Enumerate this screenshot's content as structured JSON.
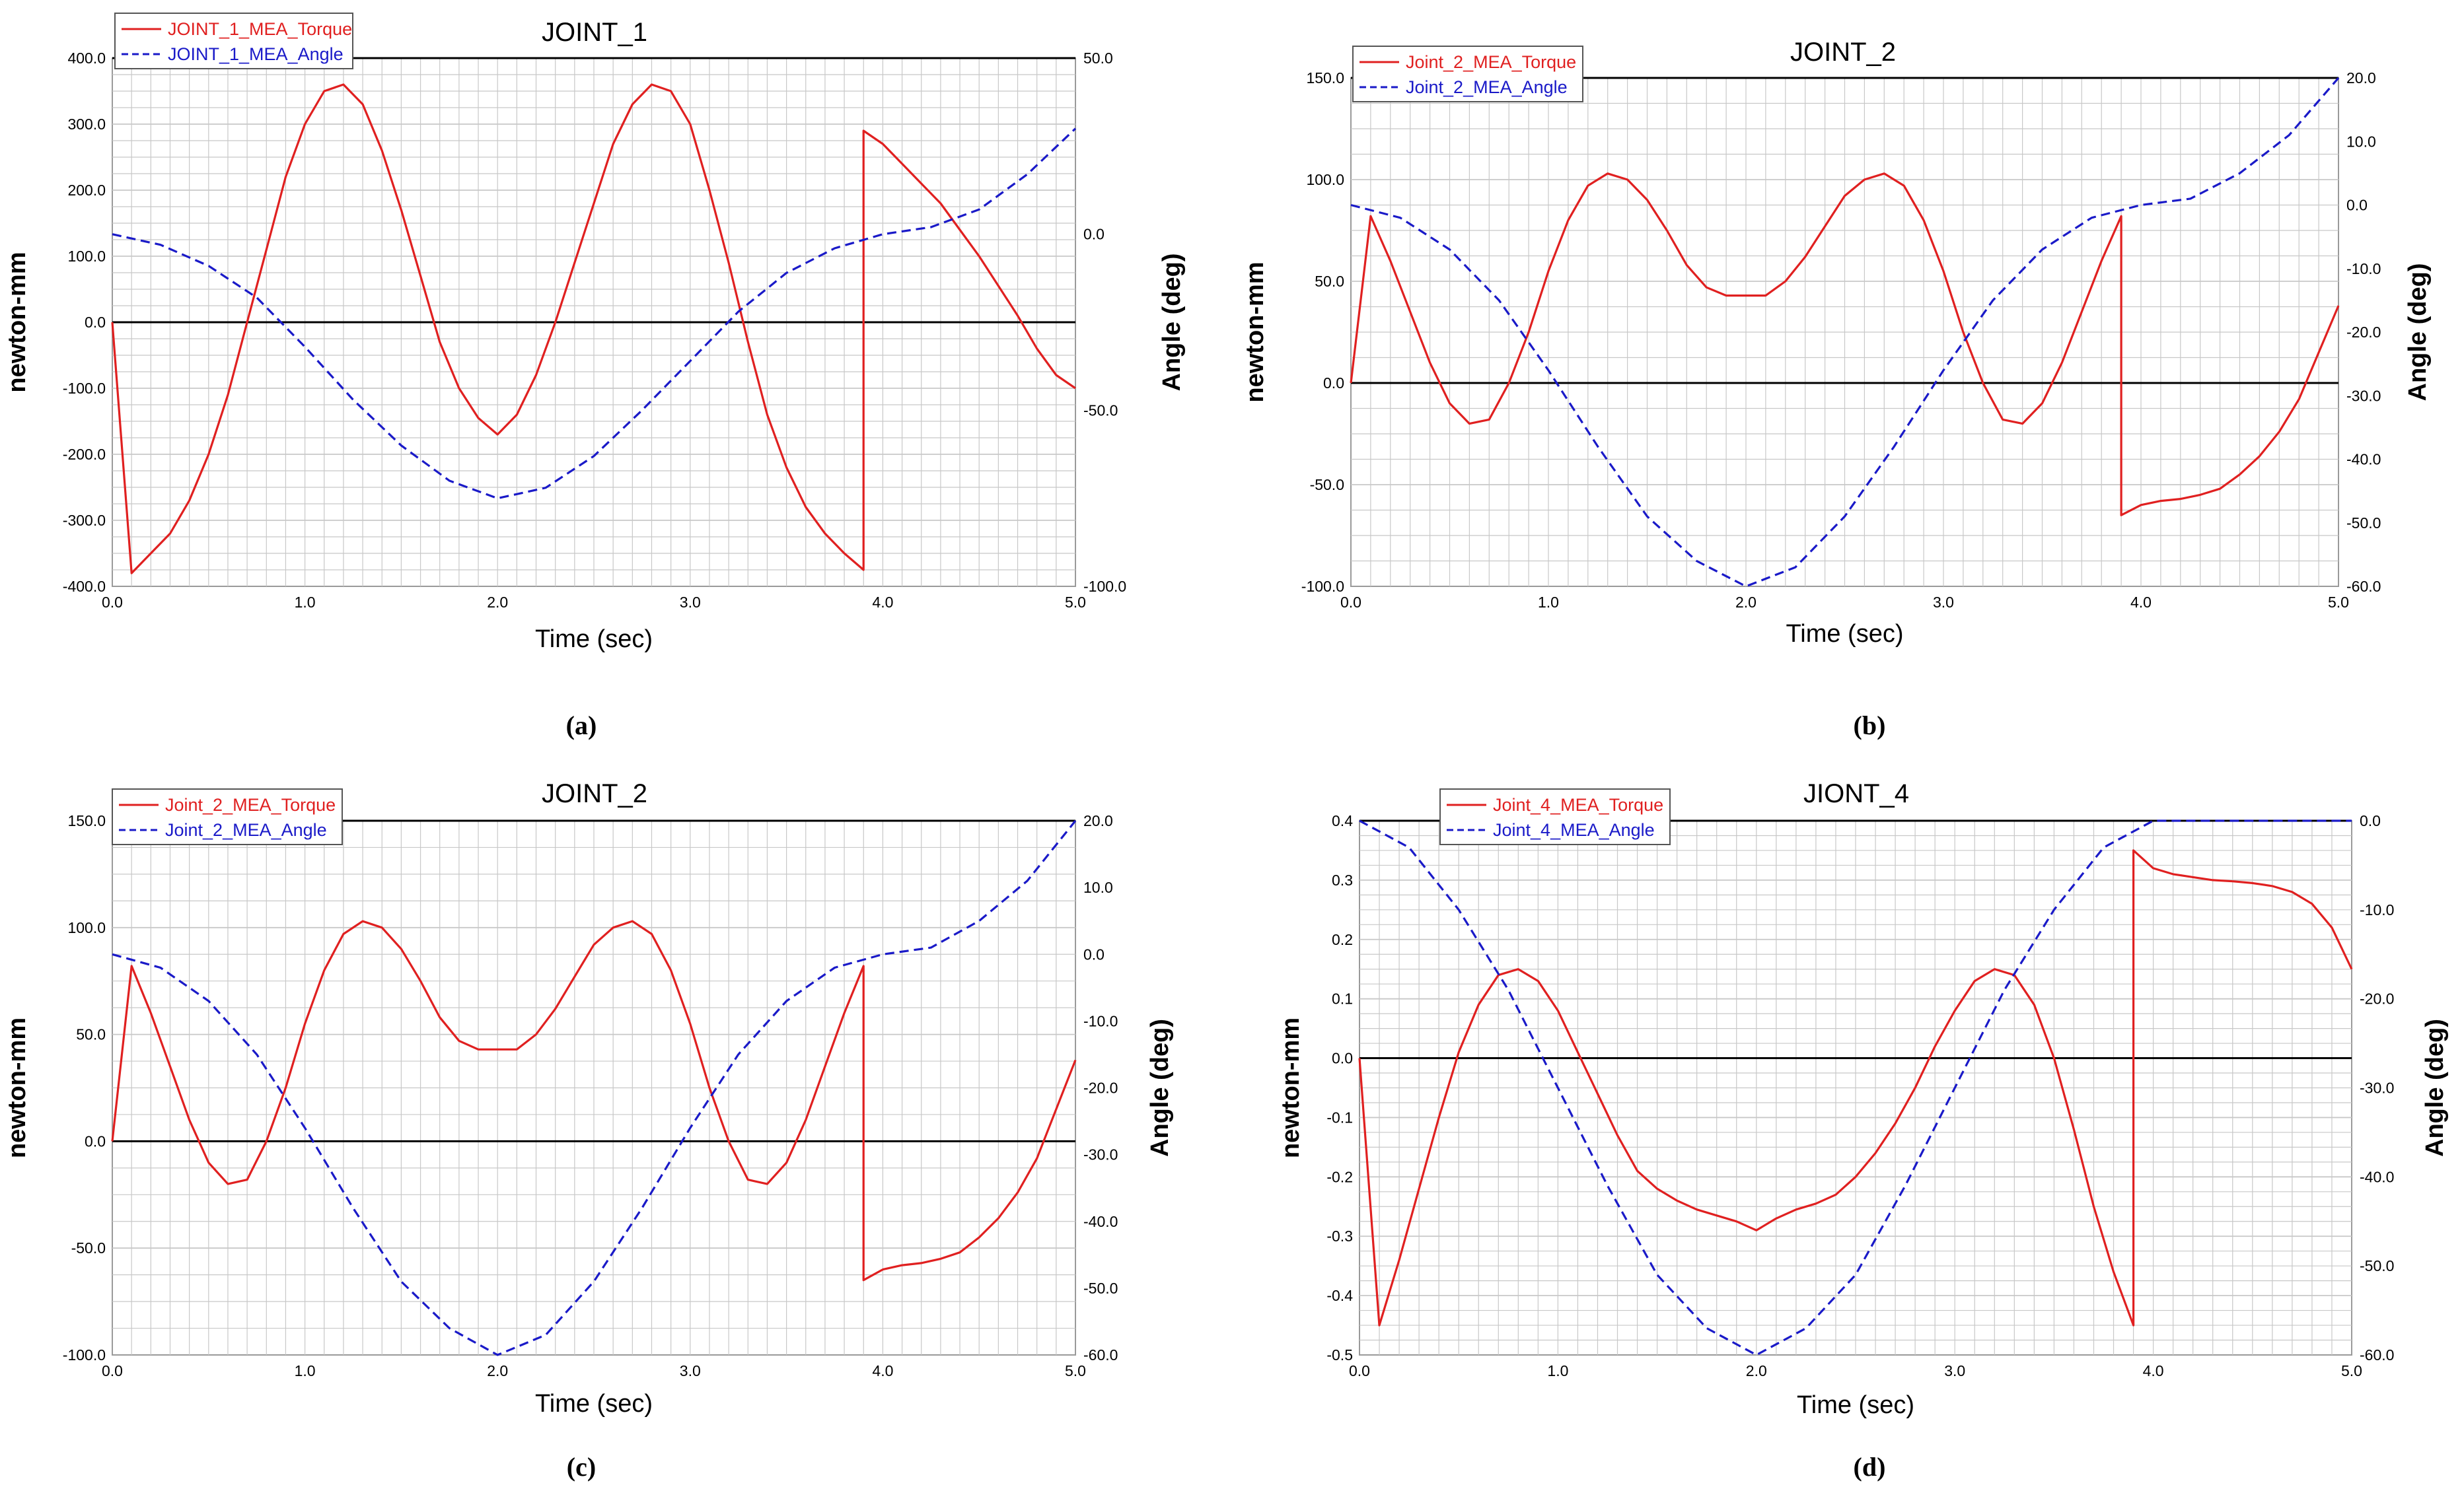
{
  "figure": {
    "panels": [
      {
        "caption": "(a)"
      },
      {
        "caption": "(b)"
      },
      {
        "caption": "(c)"
      },
      {
        "caption": "(d)"
      }
    ]
  },
  "colors": {
    "torque": "#e02020",
    "angle": "#1a1ac8",
    "zero_line": "#000000",
    "grid": "#c8c8c8"
  },
  "chart_data": [
    {
      "type": "line",
      "title": "JOINT_1",
      "xlabel": "Time (sec)",
      "ylabel": "newton-mm",
      "y2label": "Angle (deg)",
      "xlim": [
        0.0,
        5.0
      ],
      "ylim": [
        -400.0,
        400.0
      ],
      "y2lim": [
        -100.0,
        50.0
      ],
      "xticks": [
        "0.0",
        "1.0",
        "2.0",
        "3.0",
        "4.0",
        "5.0"
      ],
      "yticks": [
        "400.0",
        "300.0",
        "200.0",
        "100.0",
        "0.0",
        "-100.0",
        "-200.0",
        "-300.0",
        "-400.0"
      ],
      "y2ticks": [
        "50.0",
        "0.0",
        "-50.0",
        "-100.0"
      ],
      "grid": true,
      "legend": "top-left",
      "series": [
        {
          "name": "JOINT_1_MEA_Torque",
          "axis": "left",
          "style": "solid",
          "x": [
            0,
            0.1,
            0.2,
            0.3,
            0.4,
            0.5,
            0.6,
            0.7,
            0.8,
            0.9,
            1.0,
            1.1,
            1.2,
            1.3,
            1.4,
            1.5,
            1.6,
            1.7,
            1.8,
            1.9,
            2.0,
            2.1,
            2.2,
            2.3,
            2.4,
            2.5,
            2.6,
            2.7,
            2.8,
            2.9,
            3.0,
            3.1,
            3.2,
            3.3,
            3.4,
            3.5,
            3.6,
            3.7,
            3.8,
            3.9,
            3.9,
            4.0,
            4.1,
            4.2,
            4.3,
            4.4,
            4.5,
            4.6,
            4.7,
            4.8,
            4.9,
            5.0
          ],
          "y": [
            0,
            -380,
            -350,
            -320,
            -270,
            -200,
            -110,
            0,
            110,
            220,
            300,
            350,
            360,
            330,
            260,
            170,
            70,
            -30,
            -100,
            -145,
            -170,
            -140,
            -80,
            0,
            90,
            180,
            270,
            330,
            360,
            350,
            300,
            200,
            90,
            -30,
            -140,
            -220,
            -280,
            -320,
            -350,
            -375,
            290,
            270,
            240,
            210,
            180,
            140,
            100,
            55,
            10,
            -40,
            -80,
            -100
          ]
        },
        {
          "name": "JOINT_1_MEA_Angle",
          "axis": "right",
          "style": "dashed",
          "x": [
            0,
            0.25,
            0.5,
            0.75,
            1.0,
            1.25,
            1.5,
            1.75,
            2.0,
            2.25,
            2.5,
            2.75,
            3.0,
            3.25,
            3.5,
            3.75,
            4.0,
            4.25,
            4.5,
            4.75,
            5.0
          ],
          "y": [
            0,
            -3,
            -9,
            -18,
            -32,
            -47,
            -60,
            -70,
            -75,
            -72,
            -63,
            -50,
            -36,
            -22,
            -11,
            -4,
            0,
            2,
            7,
            17,
            30
          ]
        }
      ]
    },
    {
      "type": "line",
      "title": "JOINT_2",
      "xlabel": "Time (sec)",
      "ylabel": "newton-mm",
      "y2label": "Angle (deg)",
      "xlim": [
        0.0,
        5.0
      ],
      "ylim": [
        -100.0,
        150.0
      ],
      "y2lim": [
        -60.0,
        20.0
      ],
      "xticks": [
        "0.0",
        "1.0",
        "2.0",
        "3.0",
        "4.0",
        "5.0"
      ],
      "yticks": [
        "150.0",
        "100.0",
        "50.0",
        "0.0",
        "-50.0",
        "-100.0"
      ],
      "y2ticks": [
        "20.0",
        "10.0",
        "0.0",
        "-10.0",
        "-20.0",
        "-30.0",
        "-40.0",
        "-50.0",
        "-60.0"
      ],
      "grid": true,
      "legend": "top-left",
      "series": [
        {
          "name": "Joint_2_MEA_Torque",
          "axis": "left",
          "style": "solid",
          "x": [
            0,
            0.1,
            0.2,
            0.3,
            0.4,
            0.5,
            0.6,
            0.7,
            0.8,
            0.9,
            1.0,
            1.1,
            1.2,
            1.3,
            1.4,
            1.5,
            1.6,
            1.7,
            1.8,
            1.9,
            2.0,
            2.1,
            2.2,
            2.3,
            2.4,
            2.5,
            2.6,
            2.7,
            2.8,
            2.9,
            3.0,
            3.1,
            3.2,
            3.3,
            3.4,
            3.5,
            3.6,
            3.7,
            3.8,
            3.9,
            3.9,
            4.0,
            4.1,
            4.2,
            4.3,
            4.4,
            4.5,
            4.6,
            4.7,
            4.8,
            4.9,
            5.0
          ],
          "y": [
            0,
            82,
            60,
            35,
            10,
            -10,
            -20,
            -18,
            0,
            25,
            55,
            80,
            97,
            103,
            100,
            90,
            75,
            58,
            47,
            43,
            43,
            43,
            50,
            62,
            77,
            92,
            100,
            103,
            97,
            80,
            55,
            25,
            0,
            -18,
            -20,
            -10,
            10,
            35,
            60,
            82,
            -65,
            -60,
            -58,
            -57,
            -55,
            -52,
            -45,
            -36,
            -24,
            -8,
            15,
            38
          ]
        },
        {
          "name": "Joint_2_MEA_Angle",
          "axis": "right",
          "style": "dashed",
          "x": [
            0,
            0.25,
            0.5,
            0.75,
            1.0,
            1.25,
            1.5,
            1.75,
            2.0,
            2.25,
            2.5,
            2.75,
            3.0,
            3.25,
            3.5,
            3.75,
            4.0,
            4.25,
            4.5,
            4.75,
            5.0
          ],
          "y": [
            0,
            -2,
            -7,
            -15,
            -26,
            -38,
            -49,
            -56,
            -60,
            -57,
            -49,
            -38,
            -26,
            -15,
            -7,
            -2,
            0,
            1,
            5,
            11,
            20
          ]
        }
      ]
    },
    {
      "type": "line",
      "title": "JOINT_2",
      "xlabel": "Time (sec)",
      "ylabel": "newton-mm",
      "y2label": "Angle (deg)",
      "xlim": [
        0.0,
        5.0
      ],
      "ylim": [
        -100.0,
        150.0
      ],
      "y2lim": [
        -60.0,
        20.0
      ],
      "xticks": [
        "0.0",
        "1.0",
        "2.0",
        "3.0",
        "4.0",
        "5.0"
      ],
      "yticks": [
        "150.0",
        "100.0",
        "50.0",
        "0.0",
        "-50.0",
        "-100.0"
      ],
      "y2ticks": [
        "20.0",
        "10.0",
        "0.0",
        "-10.0",
        "-20.0",
        "-30.0",
        "-40.0",
        "-50.0",
        "-60.0"
      ],
      "grid": true,
      "legend": "top-left",
      "series": [
        {
          "name": "Joint_2_MEA_Torque",
          "axis": "left",
          "style": "solid",
          "x": [
            0,
            0.1,
            0.2,
            0.3,
            0.4,
            0.5,
            0.6,
            0.7,
            0.8,
            0.9,
            1.0,
            1.1,
            1.2,
            1.3,
            1.4,
            1.5,
            1.6,
            1.7,
            1.8,
            1.9,
            2.0,
            2.1,
            2.2,
            2.3,
            2.4,
            2.5,
            2.6,
            2.7,
            2.8,
            2.9,
            3.0,
            3.1,
            3.2,
            3.3,
            3.4,
            3.5,
            3.6,
            3.7,
            3.8,
            3.9,
            3.9,
            4.0,
            4.1,
            4.2,
            4.3,
            4.4,
            4.5,
            4.6,
            4.7,
            4.8,
            4.9,
            5.0
          ],
          "y": [
            0,
            82,
            60,
            35,
            10,
            -10,
            -20,
            -18,
            0,
            25,
            55,
            80,
            97,
            103,
            100,
            90,
            75,
            58,
            47,
            43,
            43,
            43,
            50,
            62,
            77,
            92,
            100,
            103,
            97,
            80,
            55,
            25,
            0,
            -18,
            -20,
            -10,
            10,
            35,
            60,
            82,
            -65,
            -60,
            -58,
            -57,
            -55,
            -52,
            -45,
            -36,
            -24,
            -8,
            15,
            38
          ]
        },
        {
          "name": "Joint_2_MEA_Angle",
          "axis": "right",
          "style": "dashed",
          "x": [
            0,
            0.25,
            0.5,
            0.75,
            1.0,
            1.25,
            1.5,
            1.75,
            2.0,
            2.25,
            2.5,
            2.75,
            3.0,
            3.25,
            3.5,
            3.75,
            4.0,
            4.25,
            4.5,
            4.75,
            5.0
          ],
          "y": [
            0,
            -2,
            -7,
            -15,
            -26,
            -38,
            -49,
            -56,
            -60,
            -57,
            -49,
            -38,
            -26,
            -15,
            -7,
            -2,
            0,
            1,
            5,
            11,
            20
          ]
        }
      ]
    },
    {
      "type": "line",
      "title": "JIONT_4",
      "xlabel": "Time (sec)",
      "ylabel": "newton-mm",
      "y2label": "Angle (deg)",
      "xlim": [
        0.0,
        5.0
      ],
      "ylim": [
        -0.5,
        0.4
      ],
      "y2lim": [
        -60.0,
        0.0
      ],
      "xticks": [
        "0.0",
        "1.0",
        "2.0",
        "3.0",
        "4.0",
        "5.0"
      ],
      "yticks": [
        "0.4",
        "0.3",
        "0.2",
        "0.1",
        "0.0",
        "-0.1",
        "-0.2",
        "-0.3",
        "-0.4",
        "-0.5"
      ],
      "y2ticks": [
        "0.0",
        "-10.0",
        "-20.0",
        "-30.0",
        "-40.0",
        "-50.0",
        "-60.0"
      ],
      "grid": true,
      "legend": "top-left",
      "series": [
        {
          "name": "Joint_4_MEA_Torque",
          "axis": "left",
          "style": "solid",
          "x": [
            0,
            0.1,
            0.2,
            0.3,
            0.4,
            0.5,
            0.6,
            0.7,
            0.8,
            0.9,
            1.0,
            1.1,
            1.2,
            1.3,
            1.4,
            1.5,
            1.6,
            1.7,
            1.8,
            1.9,
            2.0,
            2.1,
            2.2,
            2.3,
            2.4,
            2.5,
            2.6,
            2.7,
            2.8,
            2.9,
            3.0,
            3.1,
            3.2,
            3.3,
            3.4,
            3.5,
            3.6,
            3.7,
            3.8,
            3.9,
            3.9,
            4.0,
            4.1,
            4.2,
            4.3,
            4.4,
            4.5,
            4.6,
            4.7,
            4.8,
            4.9,
            5.0
          ],
          "y": [
            0,
            -0.45,
            -0.34,
            -0.22,
            -0.1,
            0.01,
            0.09,
            0.14,
            0.15,
            0.13,
            0.08,
            0.01,
            -0.06,
            -0.13,
            -0.19,
            -0.22,
            -0.24,
            -0.255,
            -0.265,
            -0.275,
            -0.29,
            -0.27,
            -0.255,
            -0.245,
            -0.23,
            -0.2,
            -0.16,
            -0.11,
            -0.05,
            0.02,
            0.08,
            0.13,
            0.15,
            0.14,
            0.09,
            0.0,
            -0.12,
            -0.25,
            -0.36,
            -0.45,
            0.35,
            0.32,
            0.31,
            0.305,
            0.3,
            0.298,
            0.295,
            0.29,
            0.28,
            0.26,
            0.22,
            0.15
          ]
        },
        {
          "name": "Joint_4_MEA_Angle",
          "axis": "right",
          "style": "dashed",
          "x": [
            0,
            0.25,
            0.5,
            0.75,
            1.0,
            1.25,
            1.5,
            1.75,
            2.0,
            2.25,
            2.5,
            2.75,
            3.0,
            3.25,
            3.5,
            3.75,
            4.0,
            4.25,
            4.5,
            4.75,
            5.0
          ],
          "y": [
            0,
            -3,
            -10,
            -19,
            -30,
            -41,
            -51,
            -57,
            -60,
            -57,
            -51,
            -41,
            -30,
            -19,
            -10,
            -3,
            0,
            0,
            0,
            0,
            0
          ]
        }
      ]
    }
  ]
}
